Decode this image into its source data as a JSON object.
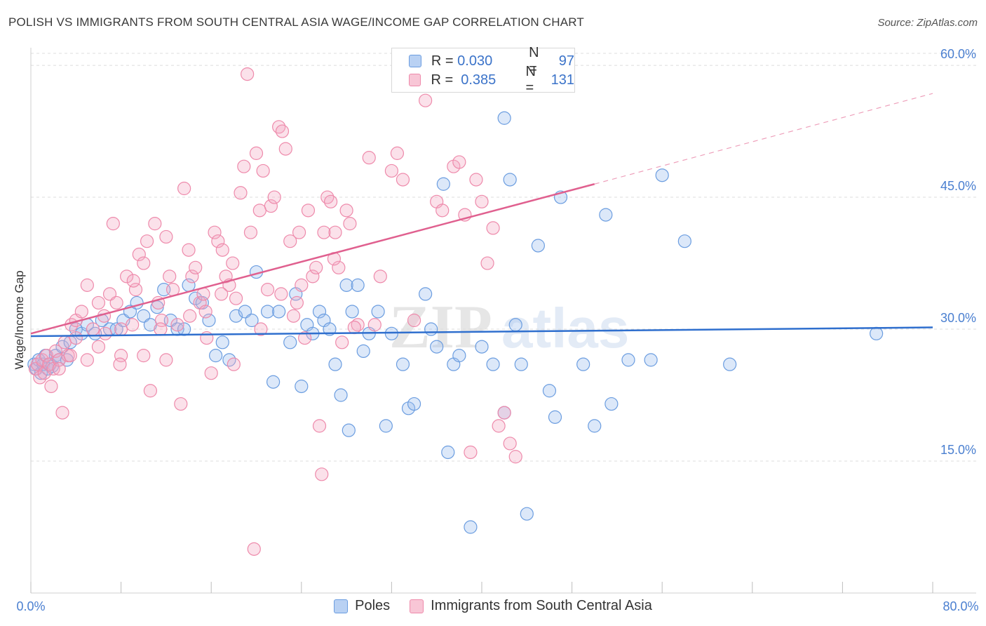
{
  "header": {
    "title": "POLISH VS IMMIGRANTS FROM SOUTH CENTRAL ASIA WAGE/INCOME GAP CORRELATION CHART",
    "source": "Source: ZipAtlas.com"
  },
  "watermark": {
    "zip": "ZIP",
    "atlas": "atlas"
  },
  "legend": {
    "rows": [
      {
        "r_label": "R =",
        "r_value": "0.030",
        "n_label": "N =",
        "n_value": "97",
        "color": "#6b9de0"
      },
      {
        "r_label": "R =",
        "r_value": "0.385",
        "n_label": "N =",
        "n_value": "131",
        "color": "#ee8aab"
      }
    ]
  },
  "bottom_legend": {
    "items": [
      {
        "label": "Poles",
        "color": "#6b9de0"
      },
      {
        "label": "Immigrants from South Central Asia",
        "color": "#ee8aab"
      }
    ]
  },
  "chart_data": {
    "type": "scatter",
    "title": "POLISH VS IMMIGRANTS FROM SOUTH CENTRAL ASIA WAGE/INCOME GAP CORRELATION CHART",
    "xlabel": "",
    "ylabel": "Wage/Income Gap",
    "xlim": [
      0,
      80
    ],
    "ylim": [
      0,
      62
    ],
    "x_tick_labels": [
      "0.0%",
      "80.0%"
    ],
    "y_ticks": [
      15,
      30,
      45,
      60
    ],
    "y_tick_labels": [
      "15.0%",
      "30.0%",
      "45.0%",
      "60.0%"
    ],
    "grid": true,
    "legend_position": "top-center",
    "series": [
      {
        "name": "Poles",
        "color": "#6b9de0",
        "trend": {
          "x": [
            0,
            80
          ],
          "y": [
            29.2,
            30.2
          ]
        },
        "points": [
          [
            0.3,
            26
          ],
          [
            0.5,
            25.5
          ],
          [
            0.7,
            26.5
          ],
          [
            0.9,
            25
          ],
          [
            1.1,
            26
          ],
          [
            1.3,
            27
          ],
          [
            1.5,
            25.5
          ],
          [
            1.7,
            26
          ],
          [
            1.9,
            25.8
          ],
          [
            2.2,
            27
          ],
          [
            2.5,
            26.5
          ],
          [
            2.8,
            28
          ],
          [
            3.2,
            26.5
          ],
          [
            3.5,
            28.5
          ],
          [
            4,
            30
          ],
          [
            4.5,
            29.5
          ],
          [
            5,
            30.5
          ],
          [
            5.7,
            29.5
          ],
          [
            6.3,
            31
          ],
          [
            7,
            30
          ],
          [
            7.6,
            30
          ],
          [
            8.2,
            31
          ],
          [
            8.8,
            32
          ],
          [
            9.4,
            33
          ],
          [
            10,
            31.5
          ],
          [
            10.6,
            30.5
          ],
          [
            11.2,
            32.5
          ],
          [
            11.8,
            34.5
          ],
          [
            12.4,
            31
          ],
          [
            13,
            30
          ],
          [
            13.6,
            30
          ],
          [
            14,
            35
          ],
          [
            14.6,
            33.5
          ],
          [
            15.2,
            33
          ],
          [
            15.8,
            31
          ],
          [
            16.4,
            27
          ],
          [
            17,
            28.5
          ],
          [
            17.6,
            26.5
          ],
          [
            18.2,
            31.5
          ],
          [
            19,
            32
          ],
          [
            19.6,
            31
          ],
          [
            20,
            36.5
          ],
          [
            21,
            32
          ],
          [
            21.5,
            24
          ],
          [
            22,
            32
          ],
          [
            23,
            28.5
          ],
          [
            23.5,
            34
          ],
          [
            24,
            23.5
          ],
          [
            24.5,
            30.5
          ],
          [
            25,
            29.5
          ],
          [
            25.6,
            32
          ],
          [
            26,
            31
          ],
          [
            26.5,
            30
          ],
          [
            27,
            26
          ],
          [
            27.5,
            22.5
          ],
          [
            28,
            35
          ],
          [
            28.5,
            32
          ],
          [
            29,
            35
          ],
          [
            29.5,
            27.5
          ],
          [
            30,
            29.5
          ],
          [
            30.8,
            32
          ],
          [
            31.5,
            19
          ],
          [
            32,
            29.5
          ],
          [
            33,
            26
          ],
          [
            33.5,
            21
          ],
          [
            34,
            21.5
          ],
          [
            35,
            34
          ],
          [
            35.5,
            30
          ],
          [
            36,
            28
          ],
          [
            37,
            16
          ],
          [
            37.5,
            26
          ],
          [
            38,
            27
          ],
          [
            39,
            7.5
          ],
          [
            40,
            28
          ],
          [
            41,
            26
          ],
          [
            42,
            54
          ],
          [
            42.5,
            47
          ],
          [
            43,
            30.5
          ],
          [
            43.5,
            26
          ],
          [
            44,
            9
          ],
          [
            45,
            39.5
          ],
          [
            46,
            23
          ],
          [
            46.5,
            20
          ],
          [
            47,
            45
          ],
          [
            49,
            26
          ],
          [
            50,
            19
          ],
          [
            51,
            43
          ],
          [
            51.5,
            21.5
          ],
          [
            53,
            26.5
          ],
          [
            55,
            26.5
          ],
          [
            56,
            47.5
          ],
          [
            58,
            40
          ],
          [
            62,
            26
          ],
          [
            75,
            29.5
          ],
          [
            42,
            20.5
          ],
          [
            28.2,
            18.5
          ],
          [
            36.6,
            46.5
          ]
        ]
      },
      {
        "name": "Immigrants from South Central Asia",
        "color": "#ee8aab",
        "trend": {
          "x": [
            0,
            50
          ],
          "y": [
            29.5,
            46.5
          ]
        },
        "trend_dashed": {
          "x": [
            50,
            80
          ],
          "y": [
            46.5,
            56.8
          ]
        },
        "points": [
          [
            0.4,
            25.5
          ],
          [
            0.6,
            26
          ],
          [
            0.8,
            24.5
          ],
          [
            1,
            26.5
          ],
          [
            1.2,
            25
          ],
          [
            1.4,
            27
          ],
          [
            1.6,
            26
          ],
          [
            1.8,
            23.5
          ],
          [
            2,
            25.5
          ],
          [
            2.2,
            27.5
          ],
          [
            2.5,
            26.5
          ],
          [
            2.8,
            20.5
          ],
          [
            3,
            28.5
          ],
          [
            3.3,
            27
          ],
          [
            3.6,
            30.5
          ],
          [
            4,
            31
          ],
          [
            4.5,
            32
          ],
          [
            5,
            35
          ],
          [
            5.5,
            30
          ],
          [
            6,
            33
          ],
          [
            6.5,
            31.5
          ],
          [
            7,
            34
          ],
          [
            7.3,
            42
          ],
          [
            7.6,
            33
          ],
          [
            8,
            30
          ],
          [
            8.5,
            36
          ],
          [
            9,
            30.5
          ],
          [
            9.3,
            34.5
          ],
          [
            9.6,
            38.5
          ],
          [
            10,
            37.5
          ],
          [
            10.3,
            40
          ],
          [
            10.6,
            23
          ],
          [
            11,
            42
          ],
          [
            11.3,
            33
          ],
          [
            11.6,
            31
          ],
          [
            12,
            40.5
          ],
          [
            12.3,
            36
          ],
          [
            12.6,
            34.5
          ],
          [
            13,
            30.5
          ],
          [
            13.3,
            21.5
          ],
          [
            13.6,
            46
          ],
          [
            14,
            39
          ],
          [
            14.3,
            36
          ],
          [
            14.6,
            37
          ],
          [
            15,
            33
          ],
          [
            15.3,
            34
          ],
          [
            15.6,
            29
          ],
          [
            16,
            25
          ],
          [
            16.3,
            41
          ],
          [
            16.6,
            40
          ],
          [
            17,
            39
          ],
          [
            17.3,
            36
          ],
          [
            17.6,
            35
          ],
          [
            17.9,
            37.5
          ],
          [
            18.2,
            33.5
          ],
          [
            18.6,
            45.5
          ],
          [
            18.9,
            48.5
          ],
          [
            19.2,
            59
          ],
          [
            19.5,
            41
          ],
          [
            20,
            50
          ],
          [
            20.3,
            43.5
          ],
          [
            20.6,
            48
          ],
          [
            21,
            34.5
          ],
          [
            21.3,
            44
          ],
          [
            21.6,
            45
          ],
          [
            22,
            53
          ],
          [
            22.3,
            52.5
          ],
          [
            22.6,
            50.5
          ],
          [
            23,
            40
          ],
          [
            23.3,
            31.5
          ],
          [
            23.6,
            33
          ],
          [
            24,
            35
          ],
          [
            24.3,
            29
          ],
          [
            24.6,
            43.5
          ],
          [
            25,
            36
          ],
          [
            25.3,
            37
          ],
          [
            25.6,
            19
          ],
          [
            26,
            41
          ],
          [
            26.3,
            45
          ],
          [
            26.6,
            44.5
          ],
          [
            27,
            41
          ],
          [
            27.3,
            37
          ],
          [
            27.6,
            28.5
          ],
          [
            28,
            43.5
          ],
          [
            28.3,
            42
          ],
          [
            29,
            30.5
          ],
          [
            30,
            49.5
          ],
          [
            31,
            36
          ],
          [
            32,
            48
          ],
          [
            32.5,
            50
          ],
          [
            33,
            47
          ],
          [
            34,
            31
          ],
          [
            35,
            56
          ],
          [
            36,
            44.5
          ],
          [
            36.5,
            43.5
          ],
          [
            37.5,
            48.5
          ],
          [
            38,
            49
          ],
          [
            38.5,
            43
          ],
          [
            39,
            16
          ],
          [
            39.5,
            47
          ],
          [
            40,
            44.5
          ],
          [
            40.5,
            37.5
          ],
          [
            41,
            41.5
          ],
          [
            41.5,
            19
          ],
          [
            42,
            20.5
          ],
          [
            42.5,
            17
          ],
          [
            43,
            15.5
          ],
          [
            18,
            26
          ],
          [
            12,
            26.5
          ],
          [
            10,
            27
          ],
          [
            8,
            27
          ],
          [
            6,
            28
          ],
          [
            5,
            26.5
          ],
          [
            4,
            29
          ],
          [
            3.5,
            27
          ],
          [
            2.5,
            25.5
          ],
          [
            11.5,
            30
          ],
          [
            15.5,
            32
          ],
          [
            19.8,
            5
          ],
          [
            25.8,
            13.5
          ],
          [
            22.2,
            34
          ],
          [
            23.8,
            41
          ],
          [
            16.9,
            34
          ],
          [
            14.1,
            31.5
          ],
          [
            9.1,
            35.5
          ],
          [
            7.9,
            26
          ],
          [
            6.6,
            29.5
          ],
          [
            20.4,
            30
          ],
          [
            26.9,
            38
          ],
          [
            28.7,
            30.2
          ],
          [
            30.5,
            30.5
          ]
        ]
      }
    ]
  }
}
